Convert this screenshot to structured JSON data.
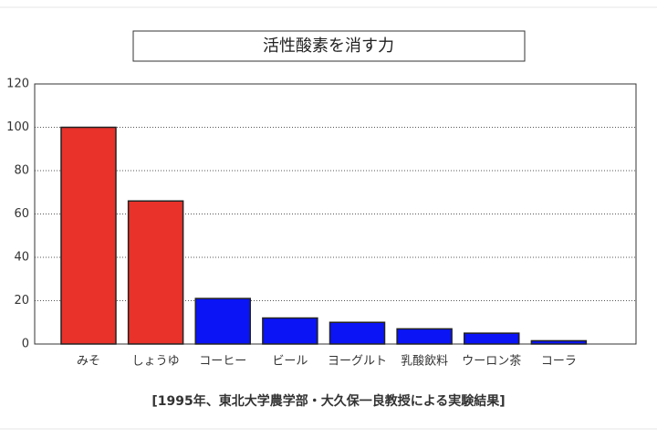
{
  "chart_data": {
    "type": "bar",
    "title": "活性酸素を消す力",
    "categories": [
      "みそ",
      "しょうゆ",
      "コーヒー",
      "ビール",
      "ヨーグルト",
      "乳酸飲料",
      "ウーロン茶",
      "コーラ"
    ],
    "values": [
      100,
      66,
      21,
      12,
      10,
      7,
      5,
      1.5
    ],
    "colors": [
      "#e8322a",
      "#e8322a",
      "#0a14f5",
      "#0a14f5",
      "#0a14f5",
      "#0a14f5",
      "#0a14f5",
      "#0a14f5"
    ],
    "ylim": [
      0,
      120
    ],
    "yticks": [
      0,
      20,
      40,
      60,
      80,
      100,
      120
    ],
    "grid": true,
    "annotation": "[1995年、東北大学農学部・大久保一良教授による実験結果]"
  }
}
